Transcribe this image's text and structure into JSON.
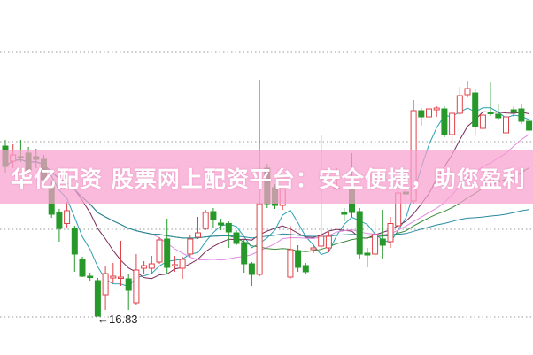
{
  "chart_data": {
    "type": "candlestick",
    "ylim": [
      15.07,
      31.11
    ],
    "grid": true,
    "colors": {
      "up": "#e0424a",
      "down": "#27992b",
      "grid": "#9a9a9a",
      "ma": [
        "#2aa0b0",
        "#7a2a5a",
        "#e08ae0",
        "#3a8a3a",
        "#2a8aa0"
      ]
    },
    "moving_average_periods": [
      5,
      10,
      20,
      30,
      60
    ],
    "annotation": {
      "arrow": "←",
      "text": "16.83"
    },
    "candles": [
      [
        24.51,
        23.59,
        24.79,
        23.31
      ],
      [
        23.83,
        24.11,
        24.59,
        23.51
      ],
      [
        24.03,
        23.99,
        24.79,
        23.79
      ],
      [
        24.19,
        23.43,
        24.47,
        23.27
      ],
      [
        24.03,
        23.91,
        24.39,
        23.51
      ],
      [
        23.91,
        22.99,
        24.11,
        22.79
      ],
      [
        22.71,
        21.43,
        22.91,
        21.27
      ],
      [
        21.51,
        20.79,
        21.67,
        20.19
      ],
      [
        21.01,
        21.59,
        21.99,
        20.79
      ],
      [
        20.79,
        19.63,
        20.91,
        18.83
      ],
      [
        19.39,
        18.63,
        19.51,
        18.59
      ],
      [
        18.63,
        18.59,
        18.79,
        18.43
      ],
      [
        18.43,
        16.83,
        18.55,
        16.83
      ],
      [
        17.79,
        18.75,
        19.11,
        17.11
      ],
      [
        18.55,
        18.63,
        19.23,
        18.31
      ],
      [
        18.55,
        18.59,
        20.23,
        18.19
      ],
      [
        18.51,
        17.99,
        18.71,
        17.11
      ],
      [
        17.43,
        18.91,
        19.63,
        17.35
      ],
      [
        18.99,
        19.11,
        19.31,
        18.71
      ],
      [
        18.99,
        19.19,
        19.55,
        18.71
      ],
      [
        19.27,
        20.27,
        20.39,
        19.19
      ],
      [
        20.31,
        19.03,
        21.23,
        18.71
      ],
      [
        19.11,
        19.15,
        19.55,
        18.83
      ],
      [
        18.99,
        19.39,
        19.51,
        18.51
      ],
      [
        19.63,
        20.31,
        20.47,
        19.51
      ],
      [
        20.39,
        20.59,
        21.31,
        20.31
      ],
      [
        20.79,
        21.51,
        21.63,
        20.71
      ],
      [
        21.55,
        21.19,
        21.71,
        20.83
      ],
      [
        21.03,
        20.95,
        21.23,
        20.71
      ],
      [
        21.01,
        20.63,
        21.11,
        19.91
      ],
      [
        20.59,
        20.11,
        20.71,
        20.03
      ],
      [
        20.15,
        19.19,
        20.27,
        18.79
      ],
      [
        19.19,
        18.71,
        19.27,
        18.19
      ],
      [
        18.71,
        21.91,
        27.51,
        18.63
      ],
      [
        23.51,
        21.91,
        23.71,
        21.71
      ],
      [
        22.63,
        21.83,
        22.79,
        21.67
      ],
      [
        21.83,
        22.59,
        22.71,
        21.63
      ],
      [
        18.59,
        19.83,
        20.91,
        18.51
      ],
      [
        19.79,
        19.03,
        20.03,
        18.83
      ],
      [
        19.11,
        18.83,
        19.23,
        18.71
      ],
      [
        19.83,
        19.91,
        20.07,
        19.67
      ],
      [
        19.99,
        20.43,
        25.03,
        19.83
      ],
      [
        19.91,
        20.43,
        20.63,
        19.71
      ],
      [
        22.59,
        22.67,
        23.51,
        22.51
      ],
      [
        21.51,
        21.43,
        21.71,
        21.11
      ],
      [
        22.63,
        21.51,
        24.19,
        21.31
      ],
      [
        21.55,
        19.63,
        21.71,
        19.43
      ],
      [
        19.67,
        19.59,
        19.91,
        19.03
      ],
      [
        19.63,
        20.51,
        21.23,
        19.51
      ],
      [
        20.31,
        20.03,
        21.63,
        19.39
      ],
      [
        20.19,
        21.01,
        21.31,
        19.91
      ],
      [
        20.91,
        22.39,
        22.63,
        20.79
      ],
      [
        22.43,
        22.35,
        22.63,
        21.67
      ],
      [
        22.03,
        26.11,
        26.59,
        21.91
      ],
      [
        26.11,
        25.83,
        26.23,
        25.43
      ],
      [
        25.83,
        26.19,
        26.51,
        25.59
      ],
      [
        26.15,
        26.23,
        26.31,
        25.83
      ],
      [
        26.19,
        25.03,
        26.31,
        24.91
      ],
      [
        25.03,
        25.99,
        26.11,
        24.59
      ],
      [
        25.99,
        26.79,
        27.19,
        25.91
      ],
      [
        26.83,
        27.11,
        27.43,
        26.71
      ],
      [
        26.91,
        25.39,
        27.11,
        25.03
      ],
      [
        25.31,
        25.91,
        26.03,
        25.23
      ],
      [
        26.03,
        25.99,
        27.39,
        25.87
      ],
      [
        25.95,
        25.79,
        26.43,
        25.71
      ],
      [
        25.11,
        25.83,
        26.51,
        25.03
      ],
      [
        26.15,
        26.03,
        26.31,
        25.83
      ],
      [
        26.19,
        25.63,
        26.43,
        25.51
      ],
      [
        25.63,
        25.23,
        25.83,
        25.11
      ]
    ]
  },
  "banner": {
    "text": "华亿配资 股票网上配资平台：安全便捷，助您盈利"
  }
}
